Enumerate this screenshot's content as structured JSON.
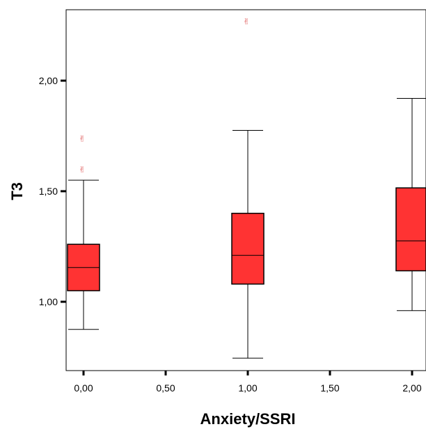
{
  "chart_data": {
    "type": "boxplot",
    "xlabel": "Anxiety/SSRI",
    "ylabel": "T3",
    "xlim": [
      -0.1,
      2.1
    ],
    "ylim": [
      0.7,
      2.3
    ],
    "x_ticks": [
      0,
      0.5,
      1,
      1.5,
      2
    ],
    "x_tick_labels": [
      "0,00",
      "0,50",
      "1,00",
      "1,50",
      "2,00"
    ],
    "y_ticks": [
      1.0,
      1.5,
      2.0
    ],
    "y_tick_labels": [
      "1,00",
      "1,50",
      "2,00"
    ],
    "box_color": "#ff3333",
    "outlier_color": "#e06060",
    "outlier_symbol": "✌",
    "grid": false,
    "legend": false,
    "groups": [
      {
        "x": 0,
        "min": 0.875,
        "q1": 1.05,
        "median": 1.155,
        "q3": 1.26,
        "max": 1.55,
        "outliers": [
          1.6,
          1.74
        ]
      },
      {
        "x": 1,
        "min": 0.745,
        "q1": 1.08,
        "median": 1.21,
        "q3": 1.4,
        "max": 1.775,
        "outliers": [
          2.27
        ]
      },
      {
        "x": 2,
        "min": 0.96,
        "q1": 1.14,
        "median": 1.275,
        "q3": 1.515,
        "max": 1.92,
        "outliers": []
      }
    ]
  }
}
